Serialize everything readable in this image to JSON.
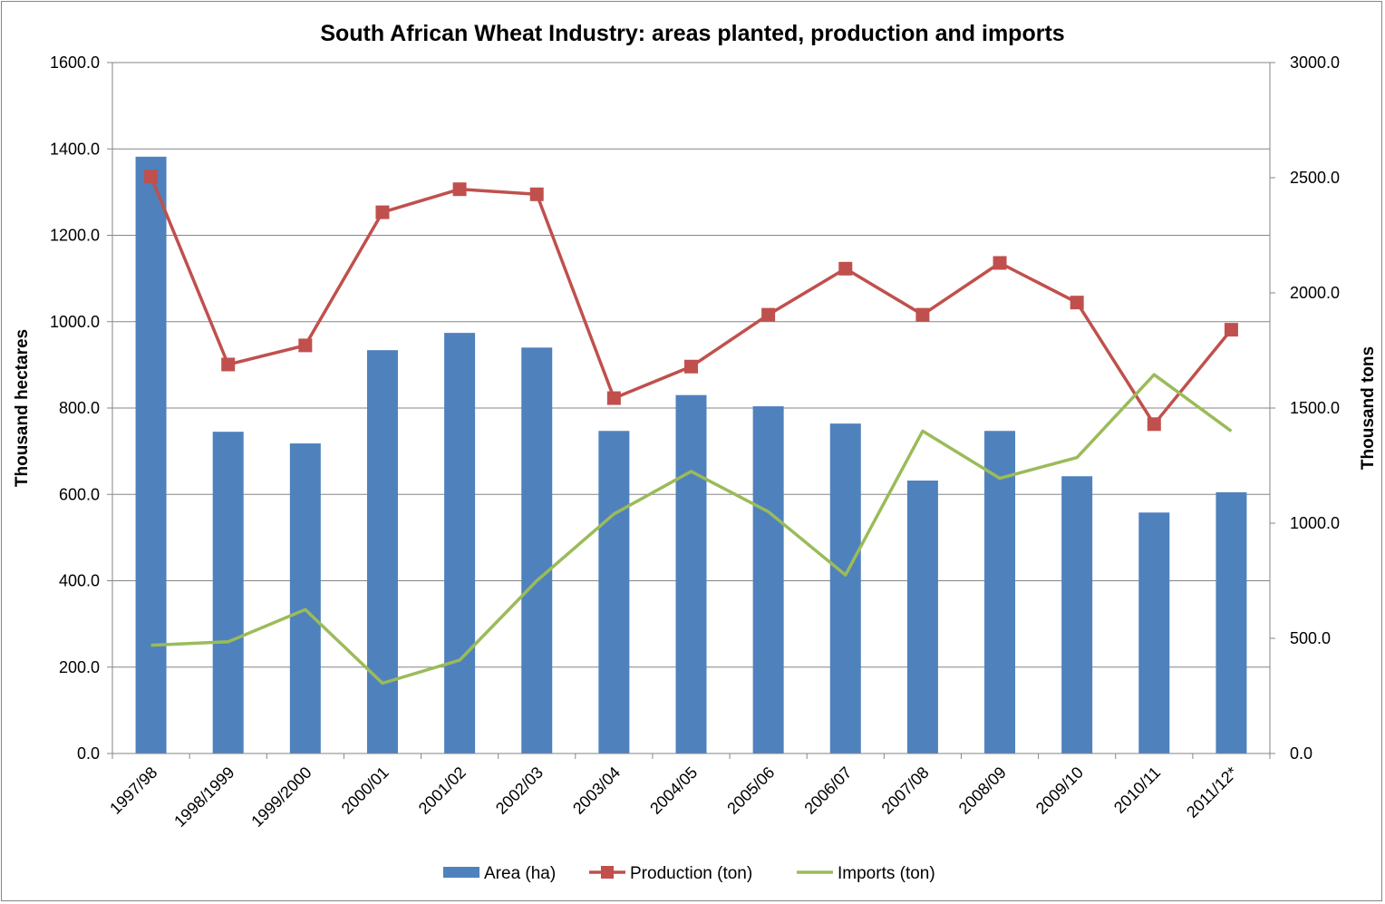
{
  "chart_data": {
    "type": "bar",
    "title": "South African Wheat Industry: areas planted, production and imports",
    "categories": [
      "1997/98",
      "1998/1999",
      "1999/2000",
      "2000/01",
      "2001/02",
      "2002/03",
      "2003/04",
      "2004/05",
      "2005/06",
      "2006/07",
      "2007/08",
      "2008/09",
      "2009/10",
      "2010/11",
      "2011/12*"
    ],
    "ylabel": "Thousand  hectares",
    "y2label": "Thousand  tons",
    "ylim": [
      0,
      1600
    ],
    "y2lim": [
      0,
      3000
    ],
    "yticks": [
      "0.0",
      "200.0",
      "400.0",
      "600.0",
      "800.0",
      "1000.0",
      "1200.0",
      "1400.0",
      "1600.0"
    ],
    "y2ticks": [
      "0.0",
      "500.0",
      "1000.0",
      "1500.0",
      "2000.0",
      "2500.0",
      "3000.0"
    ],
    "grid": true,
    "legend_position": "bottom",
    "series": [
      {
        "name": "Area (ha)",
        "type": "bar",
        "axis": "left",
        "color": "#4F81BD",
        "values": [
          1382,
          745,
          718,
          934,
          974,
          940,
          747,
          830,
          804,
          764,
          632,
          747,
          642,
          558,
          605
        ]
      },
      {
        "name": "Production (ton)",
        "type": "line",
        "axis": "right",
        "color": "#C0504D",
        "marker": "square",
        "values": [
          2505,
          1689,
          1772,
          2350,
          2450,
          2428,
          1543,
          1680,
          1905,
          2105,
          1905,
          2130,
          1958,
          1430,
          1840
        ]
      },
      {
        "name": "Imports (ton)",
        "type": "line",
        "axis": "right",
        "color": "#9BBB59",
        "marker": "none",
        "values": [
          470,
          485,
          625,
          305,
          405,
          750,
          1040,
          1225,
          1050,
          775,
          1400,
          1195,
          1285,
          1645,
          1400
        ]
      }
    ]
  }
}
